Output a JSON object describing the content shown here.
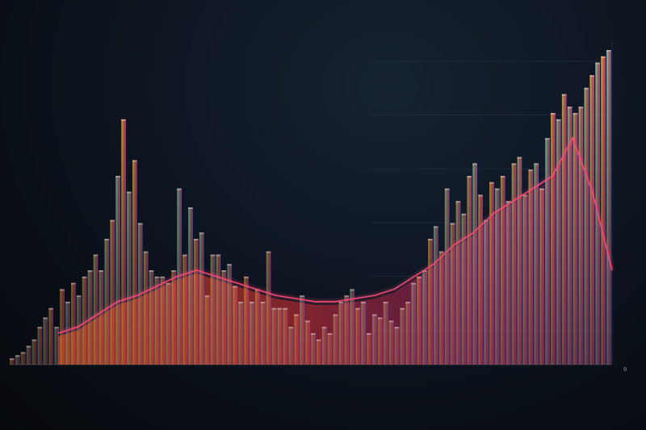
{
  "chart_data": {
    "type": "bar",
    "title": "",
    "xlabel": "",
    "ylabel": "",
    "x_ticks": [
      "",
      "",
      "",
      "",
      "",
      "",
      "",
      "",
      "",
      "",
      "",
      "",
      "",
      "",
      "",
      "",
      ""
    ],
    "y_ticks": [
      "",
      "",
      "",
      "",
      "",
      "0"
    ],
    "ylim": [
      0,
      100
    ],
    "grid": true,
    "series": [
      {
        "type": "bar",
        "values": [
          2,
          3,
          4,
          6,
          8,
          12,
          15,
          18,
          12,
          24,
          20,
          26,
          22,
          28,
          30,
          35,
          30,
          40,
          46,
          60,
          78,
          55,
          65,
          45,
          36,
          30,
          28,
          28,
          26,
          30,
          56,
          35,
          50,
          40,
          42,
          22,
          35,
          35,
          30,
          32,
          25,
          20,
          28,
          20,
          24,
          20,
          36,
          18,
          18,
          18,
          12,
          16,
          22,
          14,
          10,
          8,
          12,
          10,
          16,
          20,
          22,
          24,
          18,
          20,
          10,
          16,
          15,
          20,
          14,
          12,
          18,
          20,
          26,
          28,
          30,
          40,
          44,
          36,
          56,
          45,
          52,
          48,
          60,
          64,
          54,
          46,
          58,
          56,
          60,
          52,
          64,
          66,
          54,
          62,
          64,
          56,
          72,
          80,
          78,
          86,
          82,
          80,
          82,
          88,
          92,
          96,
          98,
          100
        ]
      },
      {
        "type": "line",
        "values": [
          10,
          12,
          16,
          20,
          22,
          25,
          28,
          30,
          28,
          26,
          24,
          22,
          21,
          20,
          20,
          21,
          22,
          24,
          28,
          32,
          38,
          42,
          48,
          52,
          56,
          60,
          72,
          55,
          30
        ]
      }
    ]
  }
}
